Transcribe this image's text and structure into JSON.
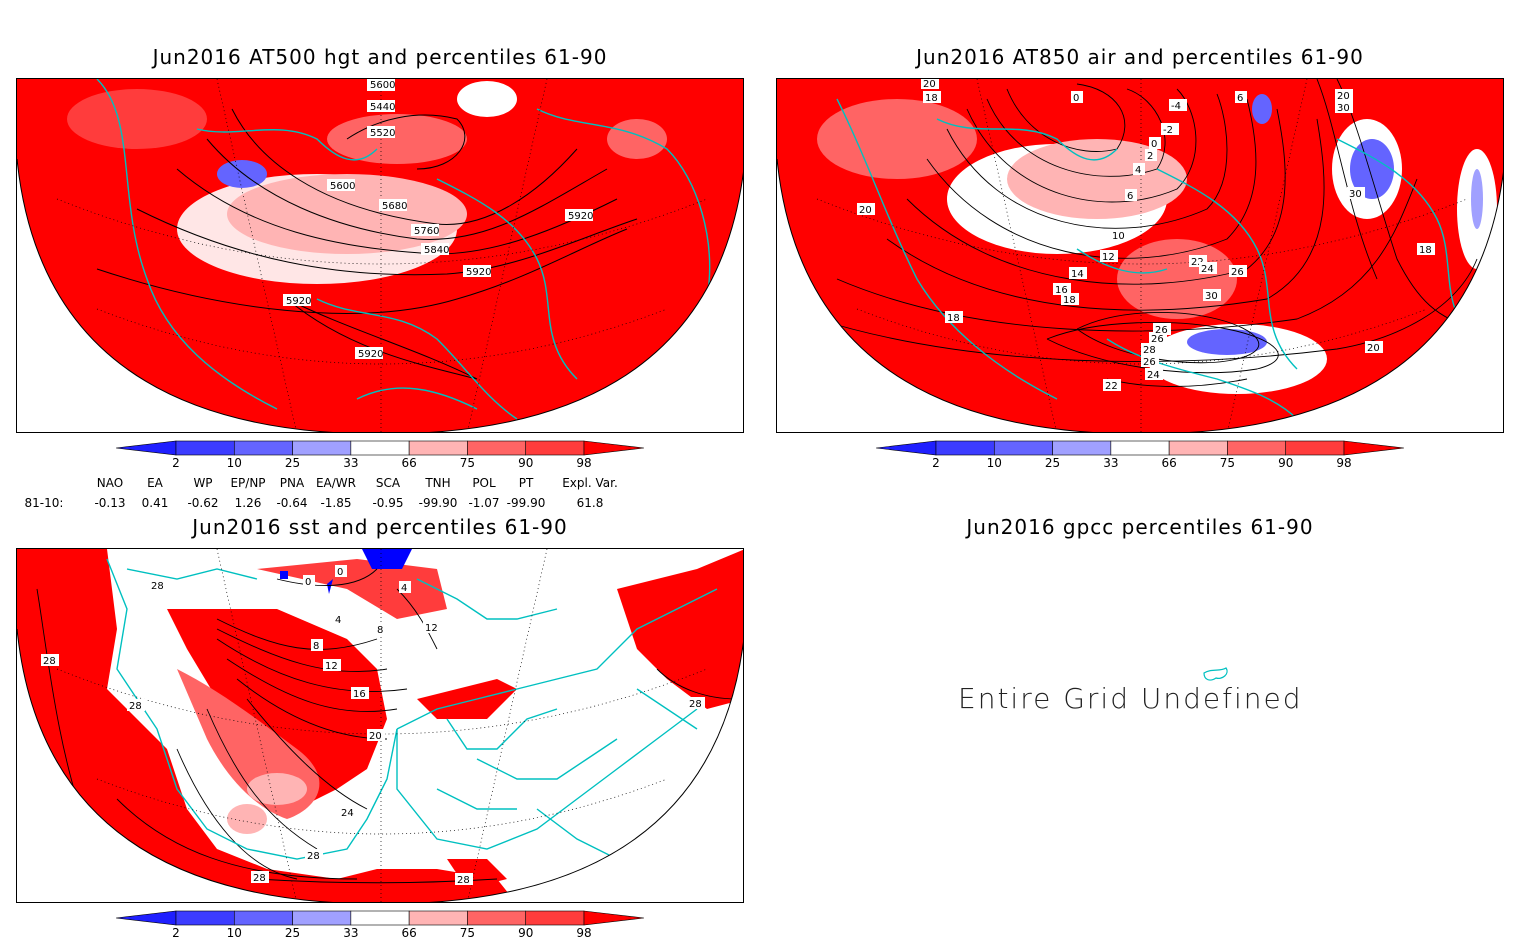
{
  "panels": [
    {
      "id": "hgt",
      "title": "Jun2016 AT500 hgt and percentiles 61-90",
      "contour_labels": [
        "5440",
        "5520",
        "5600",
        "5680",
        "5760",
        "5840",
        "5920",
        "5920",
        "5920",
        "5920",
        "5600"
      ]
    },
    {
      "id": "air",
      "title": "Jun2016 AT850 air and percentiles 61-90",
      "contour_labels": [
        "20",
        "18",
        "0",
        "-4",
        "-2",
        "0",
        "2",
        "4",
        "6",
        "6",
        "10",
        "12",
        "14",
        "16",
        "18",
        "20",
        "22",
        "24",
        "26",
        "30",
        "26",
        "28",
        "26",
        "24",
        "22",
        "20",
        "18",
        "30",
        "18",
        "20",
        "30",
        "26"
      ]
    },
    {
      "id": "sst",
      "title": "Jun2016 sst and percentiles 61-90",
      "contour_labels": [
        "28",
        "28",
        "28",
        "4",
        "8",
        "8",
        "12",
        "12",
        "16",
        "20",
        "24",
        "28",
        "28",
        "28",
        "28",
        "0",
        "0",
        "4"
      ]
    },
    {
      "id": "gpcc",
      "title": "Jun2016 gpcc percentiles 61-90",
      "message": "Entire Grid Undefined"
    }
  ],
  "colorbar": {
    "labels": [
      "2",
      "10",
      "25",
      "33",
      "66",
      "75",
      "90",
      "98"
    ],
    "colors": [
      "#1f1fff",
      "#3c3cff",
      "#6464ff",
      "#a0a0ff",
      "#ffffff",
      "#ffb4b4",
      "#ff6464",
      "#ff3c3c",
      "#ff0000"
    ]
  },
  "indices": {
    "headers": [
      "NAO",
      "EA",
      "WP",
      "EP/NP",
      "PNA",
      "EA/WR",
      "SCA",
      "TNH",
      "POL",
      "PT",
      "Expl. Var."
    ],
    "row_label": "81-10:",
    "values": [
      "-0.13",
      "0.41",
      "-0.62",
      "1.26",
      "-0.64",
      "-1.85",
      "-0.95",
      "-99.90",
      "-1.07",
      "-99.90",
      "61.8"
    ]
  }
}
